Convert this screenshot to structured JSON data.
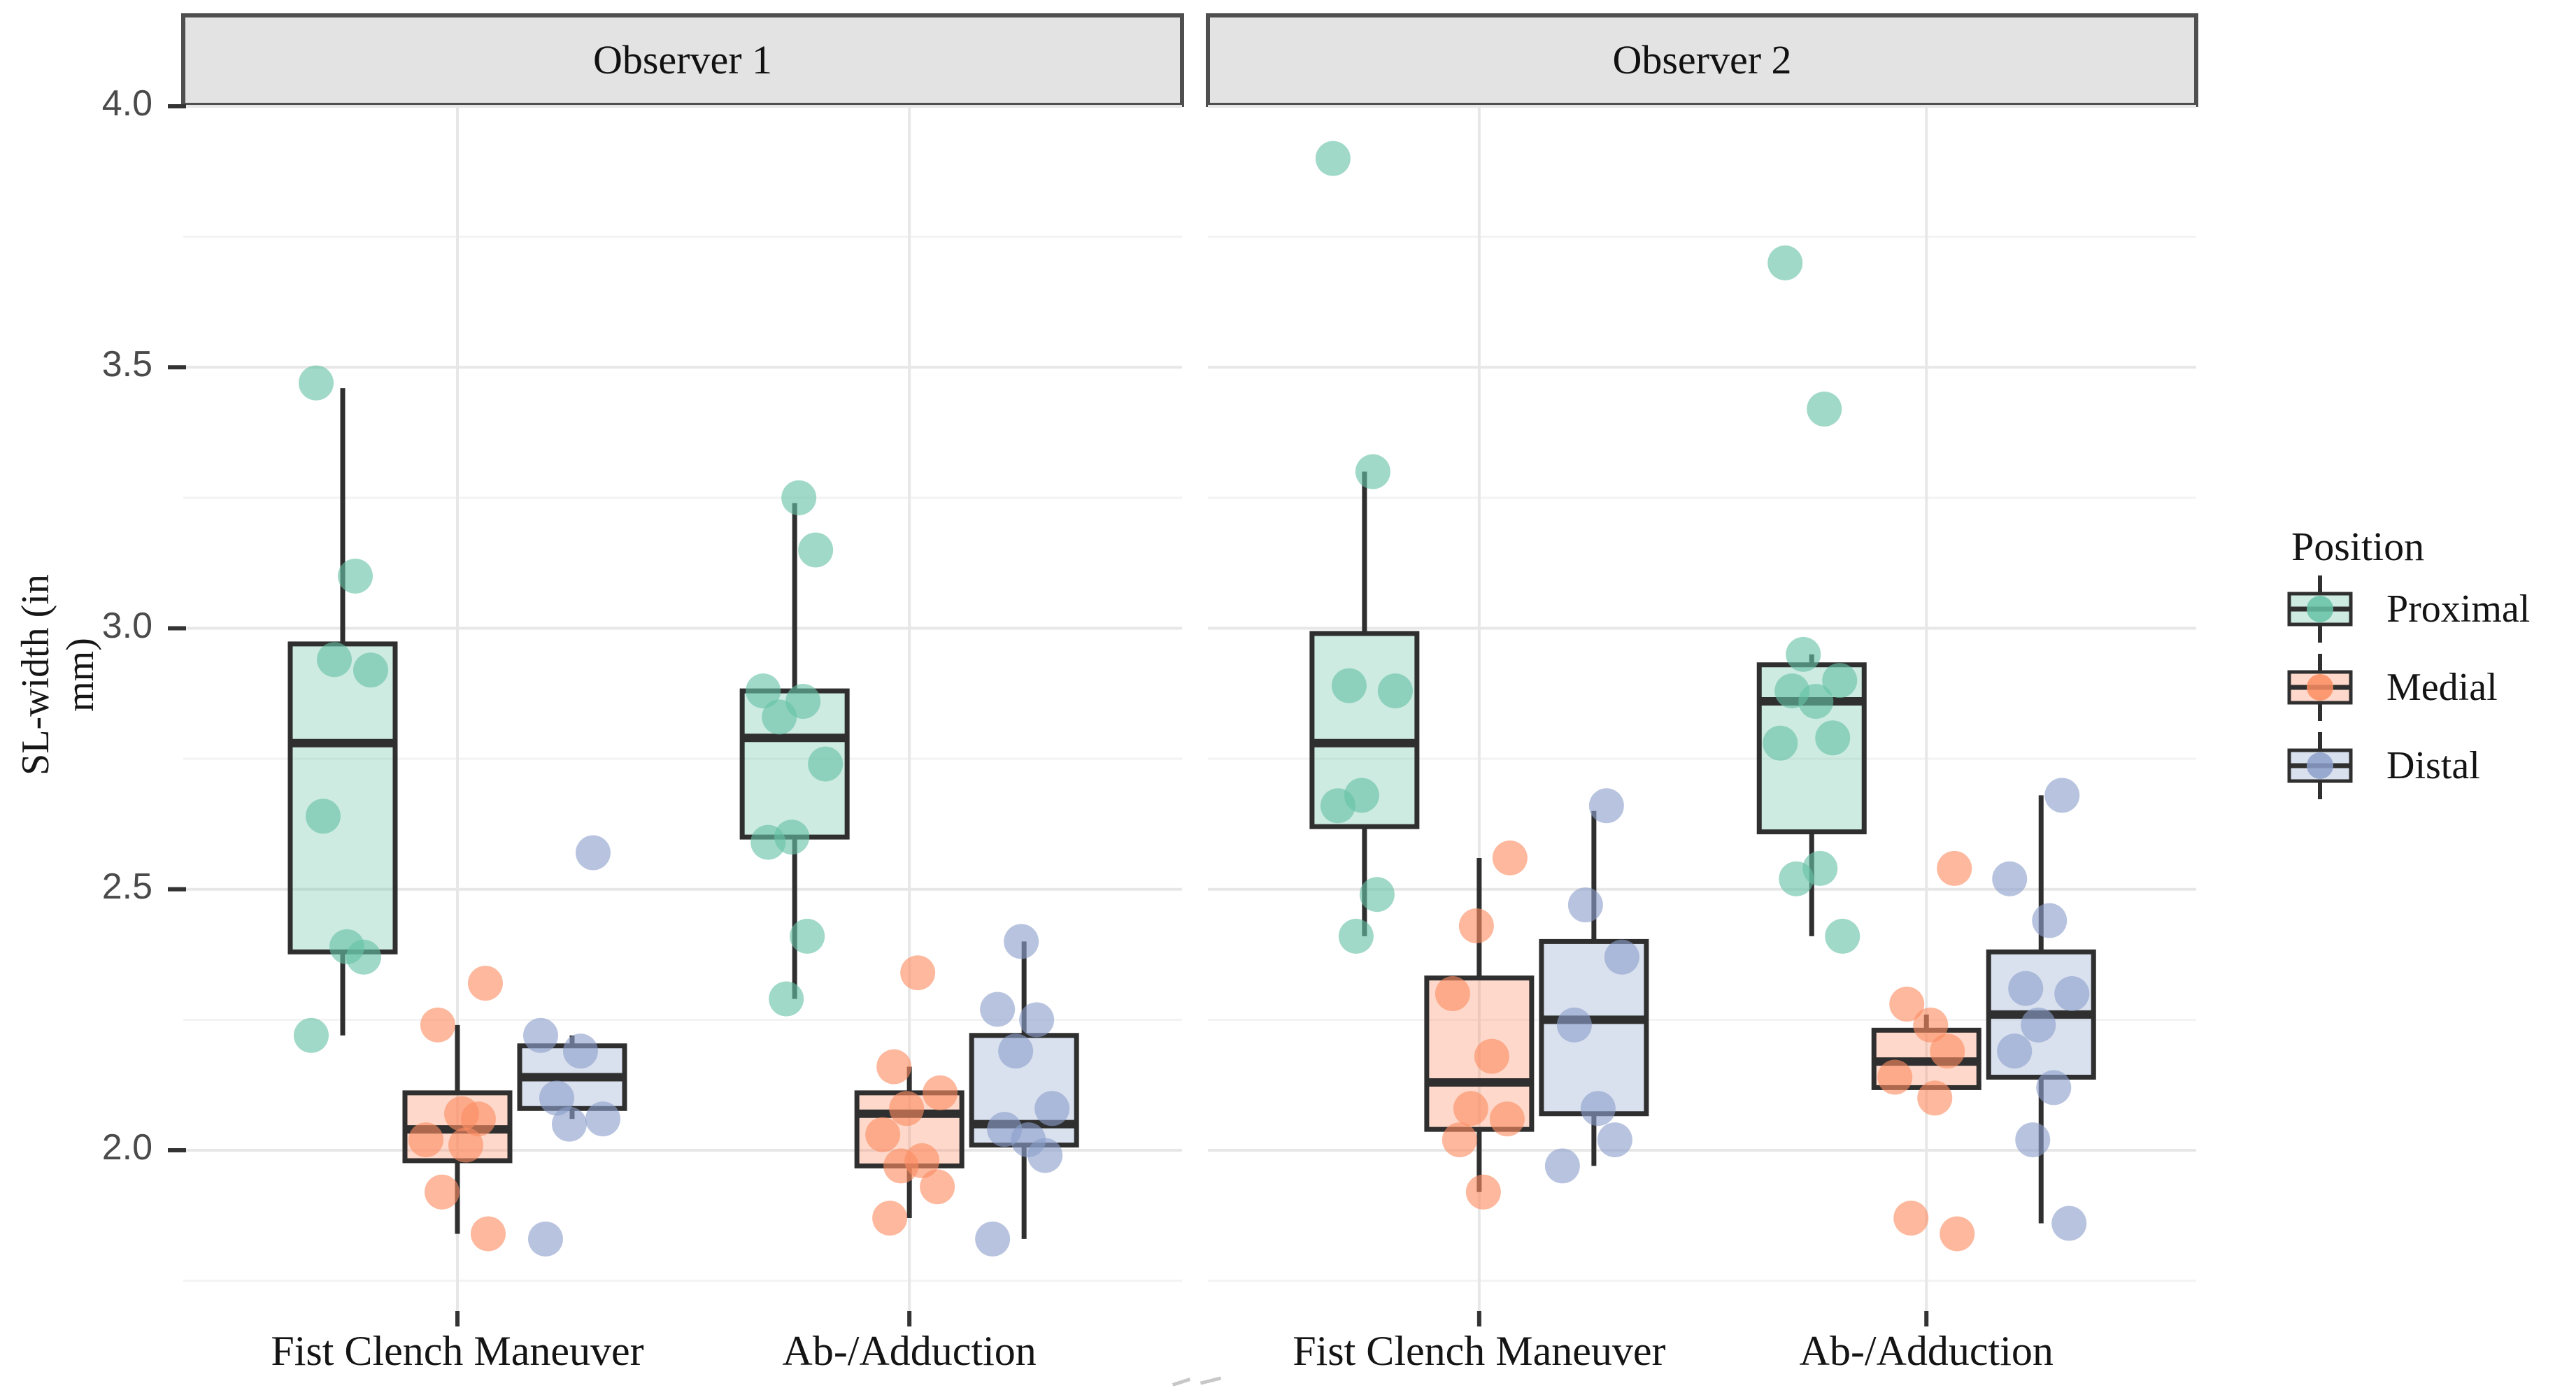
{
  "y_axis": {
    "title": "SL-width (in mm)",
    "tick_labels": [
      "4.0",
      "3.5",
      "3.0",
      "2.5",
      "2.0"
    ]
  },
  "x_axis": {
    "categories": [
      "Fist Clench Maneuver",
      "Ab-/Adduction"
    ]
  },
  "legend": {
    "title": "Position",
    "entries": [
      {
        "label": "Proximal",
        "color": "#66C2A5"
      },
      {
        "label": "Medial",
        "color": "#FC8D62"
      },
      {
        "label": "Distal",
        "color": "#8DA0CB"
      }
    ]
  },
  "chart_data": {
    "type": "boxplot",
    "title": "",
    "ylabel": "SL-width (in mm)",
    "xlabel": "",
    "ylim": [
      1.69,
      4.0
    ],
    "yticks": [
      2.0,
      2.5,
      3.0,
      3.5,
      4.0
    ],
    "yticks_minor": [
      1.75,
      2.25,
      2.75,
      3.25,
      3.75
    ],
    "grid": "major+minor",
    "legend_position": "right",
    "facets": [
      {
        "label": "Observer 1",
        "categories": [
          {
            "label": "Fist Clench Maneuver",
            "series": [
              {
                "position": "Proximal",
                "color": "#66C2A5",
                "box": {
                  "min": 2.22,
                  "q1": 2.38,
                  "median": 2.78,
                  "q3": 2.97,
                  "max": 3.46
                },
                "points": [
                  3.47,
                  3.1,
                  2.94,
                  2.92,
                  2.64,
                  2.39,
                  2.37,
                  2.22
                ]
              },
              {
                "position": "Medial",
                "color": "#FC8D62",
                "box": {
                  "min": 1.84,
                  "q1": 1.98,
                  "median": 2.04,
                  "q3": 2.11,
                  "max": 2.24
                },
                "points": [
                  2.32,
                  2.24,
                  2.07,
                  2.06,
                  2.02,
                  2.01,
                  1.92,
                  1.84
                ]
              },
              {
                "position": "Distal",
                "color": "#8DA0CB",
                "box": {
                  "min": 2.06,
                  "q1": 2.08,
                  "median": 2.14,
                  "q3": 2.2,
                  "max": 2.22
                },
                "points": [
                  2.57,
                  2.22,
                  2.19,
                  2.1,
                  2.06,
                  2.05,
                  1.83
                ]
              }
            ]
          },
          {
            "label": "Ab-/Adduction",
            "series": [
              {
                "position": "Proximal",
                "color": "#66C2A5",
                "box": {
                  "min": 2.29,
                  "q1": 2.6,
                  "median": 2.79,
                  "q3": 2.88,
                  "max": 3.24
                },
                "points": [
                  3.25,
                  3.15,
                  2.88,
                  2.86,
                  2.83,
                  2.74,
                  2.6,
                  2.59,
                  2.41,
                  2.29
                ]
              },
              {
                "position": "Medial",
                "color": "#FC8D62",
                "box": {
                  "min": 1.87,
                  "q1": 1.97,
                  "median": 2.07,
                  "q3": 2.11,
                  "max": 2.16
                },
                "points": [
                  2.34,
                  2.16,
                  2.11,
                  2.08,
                  2.03,
                  1.98,
                  1.97,
                  1.93,
                  1.87
                ]
              },
              {
                "position": "Distal",
                "color": "#8DA0CB",
                "box": {
                  "min": 1.83,
                  "q1": 2.01,
                  "median": 2.05,
                  "q3": 2.22,
                  "max": 2.4
                },
                "points": [
                  2.4,
                  2.27,
                  2.25,
                  2.19,
                  2.08,
                  2.04,
                  2.02,
                  1.99,
                  1.83
                ]
              }
            ]
          }
        ]
      },
      {
        "label": "Observer 2",
        "categories": [
          {
            "label": "Fist Clench Maneuver",
            "series": [
              {
                "position": "Proximal",
                "color": "#66C2A5",
                "box": {
                  "min": 2.41,
                  "q1": 2.62,
                  "median": 2.78,
                  "q3": 2.99,
                  "max": 3.3
                },
                "points": [
                  3.9,
                  3.3,
                  2.89,
                  2.88,
                  2.68,
                  2.66,
                  2.49,
                  2.41
                ]
              },
              {
                "position": "Medial",
                "color": "#FC8D62",
                "box": {
                  "min": 1.92,
                  "q1": 2.04,
                  "median": 2.13,
                  "q3": 2.33,
                  "max": 2.56
                },
                "points": [
                  2.56,
                  2.43,
                  2.3,
                  2.18,
                  2.08,
                  2.06,
                  2.02,
                  1.92
                ]
              },
              {
                "position": "Distal",
                "color": "#8DA0CB",
                "box": {
                  "min": 1.97,
                  "q1": 2.07,
                  "median": 2.25,
                  "q3": 2.4,
                  "max": 2.65
                },
                "points": [
                  2.66,
                  2.47,
                  2.37,
                  2.24,
                  2.08,
                  2.02,
                  1.97
                ]
              }
            ]
          },
          {
            "label": "Ab-/Adduction",
            "series": [
              {
                "position": "Proximal",
                "color": "#66C2A5",
                "box": {
                  "min": 2.41,
                  "q1": 2.61,
                  "median": 2.86,
                  "q3": 2.93,
                  "max": 2.95
                },
                "points": [
                  3.7,
                  3.42,
                  2.95,
                  2.9,
                  2.88,
                  2.86,
                  2.79,
                  2.78,
                  2.54,
                  2.52,
                  2.41
                ]
              },
              {
                "position": "Medial",
                "color": "#FC8D62",
                "box": {
                  "min": 2.12,
                  "q1": 2.12,
                  "median": 2.17,
                  "q3": 2.23,
                  "max": 2.26
                },
                "points": [
                  2.54,
                  2.28,
                  2.24,
                  2.19,
                  2.14,
                  2.1,
                  1.87,
                  1.84
                ]
              },
              {
                "position": "Distal",
                "color": "#8DA0CB",
                "box": {
                  "min": 1.86,
                  "q1": 2.14,
                  "median": 2.26,
                  "q3": 2.38,
                  "max": 2.68
                },
                "points": [
                  2.68,
                  2.52,
                  2.44,
                  2.31,
                  2.3,
                  2.24,
                  2.19,
                  2.12,
                  2.02,
                  1.86
                ]
              }
            ]
          }
        ]
      }
    ],
    "style": {
      "box_border": "#2F2F2F",
      "strip_fill": "#E3E3E3",
      "strip_border": "#4F4F4F",
      "grid_major": "#E7E7E7",
      "grid_minor": "#F3F3F3",
      "tick_color": "#333333",
      "box_fill_opacity": 0.33,
      "point_opacity": 0.62
    }
  }
}
